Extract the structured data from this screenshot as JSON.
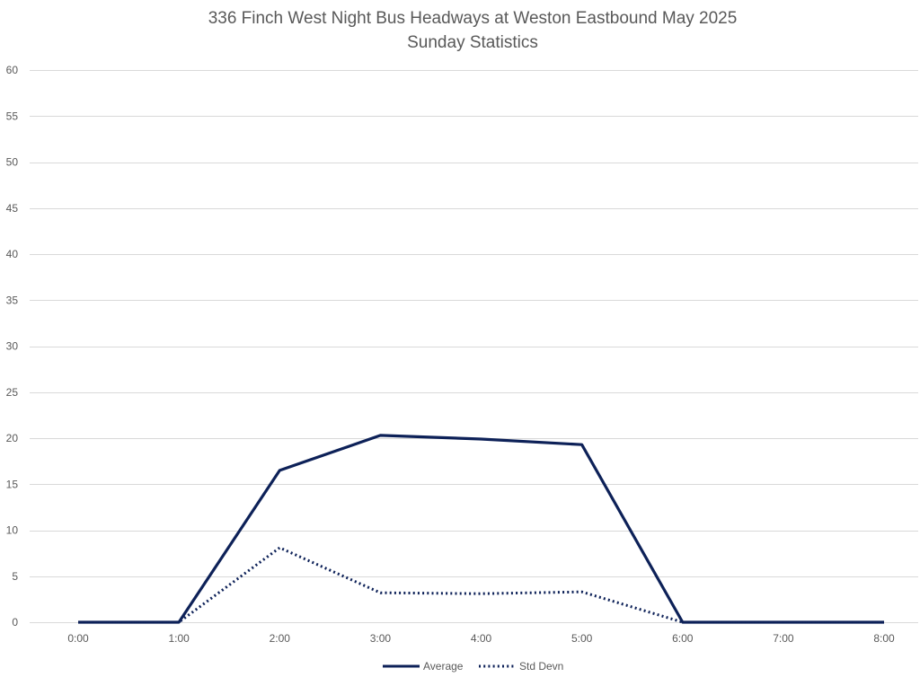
{
  "chart_data": {
    "type": "line",
    "title": "336 Finch West Night Bus Headways at Weston Eastbound May 2025",
    "subtitle": "Sunday Statistics",
    "xlabel": "",
    "ylabel": "",
    "categories": [
      "0:00",
      "1:00",
      "2:00",
      "3:00",
      "4:00",
      "5:00",
      "6:00",
      "7:00",
      "8:00"
    ],
    "ylim": [
      0,
      60
    ],
    "yticks": [
      0,
      5,
      10,
      15,
      20,
      25,
      30,
      35,
      40,
      45,
      50,
      55,
      60
    ],
    "grid": true,
    "legend_position": "bottom",
    "series": [
      {
        "name": "Average",
        "style": "solid",
        "color": "#0d2158",
        "values": [
          0,
          0,
          16.5,
          20.3,
          19.9,
          19.3,
          0,
          0,
          0
        ]
      },
      {
        "name": "Std Devn",
        "style": "dotted",
        "color": "#0d2158",
        "values": [
          0,
          0,
          8.1,
          3.2,
          3.1,
          3.3,
          0,
          0,
          0
        ]
      }
    ]
  }
}
